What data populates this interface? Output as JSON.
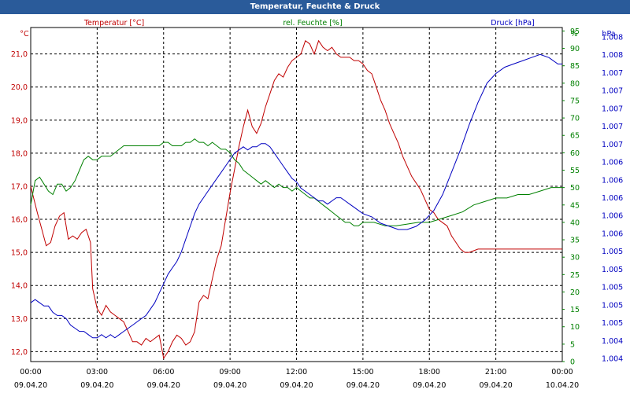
{
  "window": {
    "title": "Temperatur, Feuchte & Druck"
  },
  "colors": {
    "temp": "#c00000",
    "humid": "#008000",
    "press": "#0000c0",
    "axis": "#000000",
    "grid": "#000000"
  },
  "chart_data": {
    "type": "line",
    "title": "Temperatur, Feuchte & Druck",
    "x_ticks": [
      {
        "time": "00:00",
        "date": "09.04.20"
      },
      {
        "time": "03:00",
        "date": "09.04.20"
      },
      {
        "time": "06:00",
        "date": "09.04.20"
      },
      {
        "time": "09:00",
        "date": "09.04.20"
      },
      {
        "time": "12:00",
        "date": "09.04.20"
      },
      {
        "time": "15:00",
        "date": "09.04.20"
      },
      {
        "time": "18:00",
        "date": "09.04.20"
      },
      {
        "time": "21:00",
        "date": "09.04.20"
      },
      {
        "time": "00:00",
        "date": "10.04.20"
      }
    ],
    "x_range_hours": [
      0,
      24
    ],
    "axes": {
      "temperature": {
        "label": "Temperatur [°C]",
        "unit": "°C",
        "range": [
          11.7,
          21.8
        ],
        "ticks": [
          "12,0",
          "13,0",
          "14,0",
          "15,0",
          "16,0",
          "17,0",
          "18,0",
          "19,0",
          "20,0",
          "21,0"
        ]
      },
      "humidity": {
        "label": "rel. Feuchte [%]",
        "unit": "%",
        "range": [
          0,
          96
        ],
        "ticks": [
          "0",
          "5",
          "10",
          "15",
          "20",
          "25",
          "30",
          "35",
          "40",
          "45",
          "50",
          "55",
          "60",
          "65",
          "70",
          "75",
          "80",
          "85",
          "90",
          "95"
        ]
      },
      "pressure": {
        "label": "Druck [hPa]",
        "unit": "hPa",
        "tick_labels": [
          "1.004",
          "1.004",
          "1.005",
          "1.005",
          "1.005",
          "1.005",
          "1.005",
          "1.006",
          "1.006",
          "1.006",
          "1.006",
          "1.006",
          "1.007",
          "1.007",
          "1.007",
          "1.007",
          "1.007",
          "1.008",
          "1.008"
        ]
      }
    },
    "series": [
      {
        "name": "Temperatur",
        "axis": "temperature",
        "x": [
          0,
          0.3,
          0.5,
          0.7,
          0.9,
          1.1,
          1.3,
          1.5,
          1.7,
          1.9,
          2.1,
          2.3,
          2.5,
          2.7,
          2.8,
          3.0,
          3.2,
          3.4,
          3.6,
          3.8,
          4.0,
          4.2,
          4.4,
          4.6,
          4.8,
          5.0,
          5.2,
          5.4,
          5.6,
          5.8,
          6.0,
          6.2,
          6.4,
          6.6,
          6.8,
          7.0,
          7.2,
          7.4,
          7.6,
          7.8,
          8.0,
          8.2,
          8.4,
          8.6,
          8.8,
          9.0,
          9.2,
          9.4,
          9.6,
          9.8,
          10.0,
          10.2,
          10.4,
          10.6,
          10.8,
          11.0,
          11.2,
          11.4,
          11.6,
          11.8,
          12.0,
          12.2,
          12.4,
          12.6,
          12.8,
          13.0,
          13.2,
          13.4,
          13.6,
          13.8,
          14.0,
          14.2,
          14.4,
          14.6,
          14.8,
          15.0,
          15.2,
          15.4,
          15.6,
          15.8,
          16.0,
          16.2,
          16.4,
          16.6,
          16.8,
          17.0,
          17.2,
          17.4,
          17.6,
          17.8,
          18.0,
          18.2,
          18.4,
          18.6,
          18.8,
          19.0,
          19.2,
          19.4,
          19.6,
          19.8,
          20.0,
          20.2,
          20.4,
          20.6,
          20.8,
          21.0,
          21.2,
          21.4,
          21.6,
          21.8,
          22.0,
          22.2,
          22.4,
          22.6,
          22.8,
          23.0,
          23.2,
          23.4,
          23.6,
          23.8,
          24.0
        ],
        "values": [
          17.0,
          16.2,
          15.7,
          15.2,
          15.3,
          15.8,
          16.1,
          16.2,
          15.4,
          15.5,
          15.4,
          15.6,
          15.7,
          15.3,
          13.9,
          13.3,
          13.1,
          13.4,
          13.2,
          13.1,
          13.0,
          12.9,
          12.6,
          12.3,
          12.3,
          12.2,
          12.4,
          12.3,
          12.4,
          12.5,
          11.8,
          12.0,
          12.3,
          12.5,
          12.4,
          12.2,
          12.3,
          12.6,
          13.5,
          13.7,
          13.6,
          14.2,
          14.8,
          15.2,
          16.0,
          16.8,
          17.5,
          18.2,
          18.8,
          19.3,
          18.8,
          18.6,
          18.9,
          19.4,
          19.8,
          20.2,
          20.4,
          20.3,
          20.6,
          20.8,
          20.9,
          21.0,
          21.4,
          21.3,
          21.0,
          21.4,
          21.2,
          21.1,
          21.2,
          21.0,
          20.9,
          20.9,
          20.9,
          20.8,
          20.8,
          20.7,
          20.5,
          20.4,
          20.0,
          19.6,
          19.3,
          18.9,
          18.6,
          18.3,
          17.9,
          17.6,
          17.3,
          17.1,
          16.9,
          16.6,
          16.3,
          16.2,
          16.0,
          15.9,
          15.8,
          15.5,
          15.3,
          15.1,
          15.0,
          15.0,
          15.05,
          15.1,
          15.1,
          15.1,
          15.1,
          15.1,
          15.1,
          15.1,
          15.1,
          15.1,
          15.1,
          15.1,
          15.1,
          15.1,
          15.1,
          15.1,
          15.1,
          15.1,
          15.1,
          15.1,
          15.1
        ]
      },
      {
        "name": "rel. Feuchte",
        "axis": "humidity",
        "x": [
          0,
          0.2,
          0.4,
          0.6,
          0.8,
          1.0,
          1.2,
          1.4,
          1.6,
          1.8,
          2.0,
          2.2,
          2.4,
          2.6,
          2.8,
          3.0,
          3.2,
          3.4,
          3.6,
          3.8,
          4.0,
          4.2,
          4.4,
          4.6,
          4.8,
          5.0,
          5.2,
          5.4,
          5.6,
          5.8,
          6.0,
          6.2,
          6.4,
          6.6,
          6.8,
          7.0,
          7.2,
          7.4,
          7.6,
          7.8,
          8.0,
          8.2,
          8.4,
          8.6,
          8.8,
          9.0,
          9.2,
          9.4,
          9.6,
          9.8,
          10.0,
          10.2,
          10.4,
          10.6,
          10.8,
          11.0,
          11.2,
          11.4,
          11.6,
          11.8,
          12.0,
          12.2,
          12.4,
          12.6,
          12.8,
          13.0,
          13.2,
          13.4,
          13.6,
          13.8,
          14.0,
          14.2,
          14.4,
          14.6,
          14.8,
          15.0,
          15.5,
          16.0,
          16.5,
          17.0,
          17.5,
          18.0,
          18.5,
          19.0,
          19.5,
          20.0,
          20.5,
          21.0,
          21.5,
          22.0,
          22.5,
          23.0,
          23.5,
          24.0
        ],
        "values": [
          45,
          52,
          53,
          51,
          49,
          48,
          51,
          51,
          49,
          50,
          52,
          55,
          58,
          59,
          58,
          58,
          59,
          59,
          59,
          60,
          61,
          62,
          62,
          62,
          62,
          62,
          62,
          62,
          62,
          62,
          63,
          63,
          62,
          62,
          62,
          63,
          63,
          64,
          63,
          63,
          62,
          63,
          62,
          61,
          61,
          60,
          58,
          57,
          55,
          54,
          53,
          52,
          51,
          52,
          51,
          50,
          51,
          50,
          50,
          49,
          50,
          49,
          48,
          47,
          47,
          46,
          45,
          44,
          43,
          42,
          41,
          40,
          40,
          39,
          39,
          40,
          40,
          39,
          39,
          39.5,
          40,
          40,
          41,
          42,
          43,
          45,
          46,
          47,
          47,
          48,
          48,
          49,
          50,
          50
        ]
      },
      {
        "name": "Druck",
        "axis": "pressure",
        "x": [
          0,
          0.2,
          0.4,
          0.6,
          0.8,
          1.0,
          1.2,
          1.4,
          1.6,
          1.8,
          2.0,
          2.2,
          2.4,
          2.6,
          2.8,
          3.0,
          3.2,
          3.4,
          3.6,
          3.8,
          4.0,
          4.2,
          4.4,
          4.6,
          4.8,
          5.0,
          5.2,
          5.4,
          5.6,
          5.8,
          6.0,
          6.2,
          6.4,
          6.6,
          6.8,
          7.0,
          7.2,
          7.4,
          7.6,
          7.8,
          8.0,
          8.2,
          8.4,
          8.6,
          8.8,
          9.0,
          9.2,
          9.4,
          9.6,
          9.8,
          10.0,
          10.2,
          10.4,
          10.6,
          10.8,
          11.0,
          11.2,
          11.4,
          11.6,
          11.8,
          12.0,
          12.2,
          12.4,
          12.6,
          12.8,
          13.0,
          13.2,
          13.4,
          13.6,
          13.8,
          14.0,
          14.2,
          14.4,
          14.6,
          14.8,
          15.0,
          15.4,
          15.8,
          16.2,
          16.6,
          17.0,
          17.4,
          17.8,
          18.2,
          18.6,
          19.0,
          19.4,
          19.8,
          20.2,
          20.6,
          21.0,
          21.4,
          21.8,
          22.2,
          22.6,
          23.0,
          23.4,
          23.8,
          24.0
        ],
        "values": [
          16,
          17,
          16,
          15,
          15,
          13,
          12,
          12,
          11,
          9,
          8,
          7,
          7,
          6,
          5,
          5,
          6,
          5,
          6,
          5,
          6,
          7,
          8,
          9,
          10,
          11,
          12,
          14,
          16,
          19,
          22,
          25,
          27,
          29,
          32,
          36,
          40,
          44,
          47,
          49,
          51,
          53,
          55,
          57,
          59,
          61,
          63,
          64,
          65,
          64,
          65,
          65,
          66,
          66,
          65,
          63,
          61,
          59,
          57,
          55,
          54,
          52,
          51,
          50,
          49,
          48,
          48,
          47,
          48,
          49,
          49,
          48,
          47,
          46,
          45,
          44,
          43,
          41,
          40,
          39,
          39,
          40,
          42,
          45,
          50,
          57,
          64,
          72,
          79,
          85,
          88,
          90,
          91,
          92,
          93,
          94,
          93,
          91,
          91
        ]
      }
    ]
  }
}
